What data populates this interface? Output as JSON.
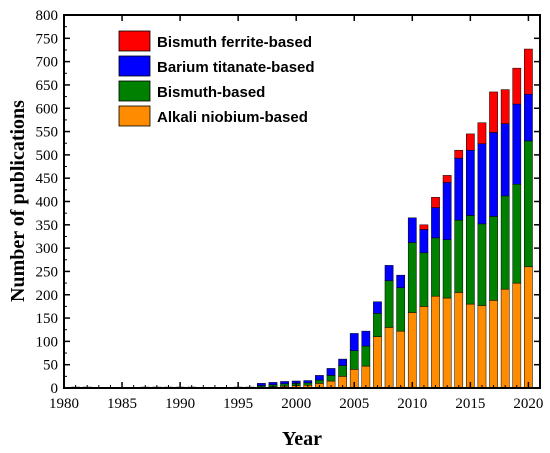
{
  "chart_data": {
    "type": "bar",
    "stacked": true,
    "xlabel": "Year",
    "ylabel": "Number of publications",
    "ylim": [
      0,
      800
    ],
    "xlim": [
      1980,
      2021
    ],
    "x_ticks": [
      1980,
      1985,
      1990,
      1995,
      2000,
      2005,
      2010,
      2015,
      2020
    ],
    "y_ticks": [
      0,
      50,
      100,
      150,
      200,
      250,
      300,
      350,
      400,
      450,
      500,
      550,
      600,
      650,
      700,
      750,
      800
    ],
    "legend_position": "top-left",
    "x": [
      1981,
      1982,
      1983,
      1984,
      1985,
      1986,
      1987,
      1988,
      1989,
      1990,
      1991,
      1992,
      1993,
      1994,
      1995,
      1996,
      1997,
      1998,
      1999,
      2000,
      2001,
      2002,
      2003,
      2004,
      2005,
      2006,
      2007,
      2008,
      2009,
      2010,
      2011,
      2012,
      2013,
      2014,
      2015,
      2016,
      2017,
      2018,
      2019,
      2020
    ],
    "series": [
      {
        "name": "Alkali niobium-based",
        "color": "#ff8c00",
        "values": [
          1,
          1,
          0,
          0,
          0,
          0,
          1,
          1,
          1,
          1,
          1,
          0,
          0,
          0,
          1,
          1,
          2,
          3,
          4,
          5,
          6,
          10,
          15,
          25,
          40,
          47,
          110,
          130,
          122,
          162,
          175,
          197,
          193,
          205,
          180,
          177,
          188,
          212,
          225,
          260
        ]
      },
      {
        "name": "Bismuth-based",
        "color": "#008000",
        "values": [
          1,
          1,
          1,
          1,
          1,
          1,
          1,
          1,
          1,
          1,
          1,
          0,
          0,
          1,
          1,
          1,
          3,
          4,
          5,
          5,
          5,
          7,
          12,
          23,
          40,
          43,
          50,
          100,
          93,
          150,
          115,
          125,
          125,
          155,
          190,
          175,
          180,
          200,
          212,
          270
        ]
      },
      {
        "name": "Barium titanate-based",
        "color": "#0000ff",
        "values": [
          0,
          0,
          0,
          0,
          0,
          0,
          0,
          0,
          0,
          0,
          0,
          0,
          0,
          0,
          0,
          0,
          5,
          5,
          5,
          5,
          5,
          10,
          15,
          14,
          37,
          32,
          25,
          33,
          27,
          53,
          50,
          65,
          123,
          133,
          140,
          172,
          180,
          155,
          172,
          100
        ]
      },
      {
        "name": "Bismuth ferrite-based",
        "color": "#ff0000",
        "values": [
          0,
          0,
          0,
          0,
          0,
          0,
          0,
          0,
          0,
          0,
          0,
          0,
          0,
          0,
          0,
          0,
          0,
          0,
          0,
          0,
          0,
          0,
          0,
          0,
          0,
          0,
          0,
          0,
          0,
          0,
          10,
          22,
          15,
          17,
          35,
          45,
          87,
          73,
          77,
          97
        ]
      }
    ]
  }
}
